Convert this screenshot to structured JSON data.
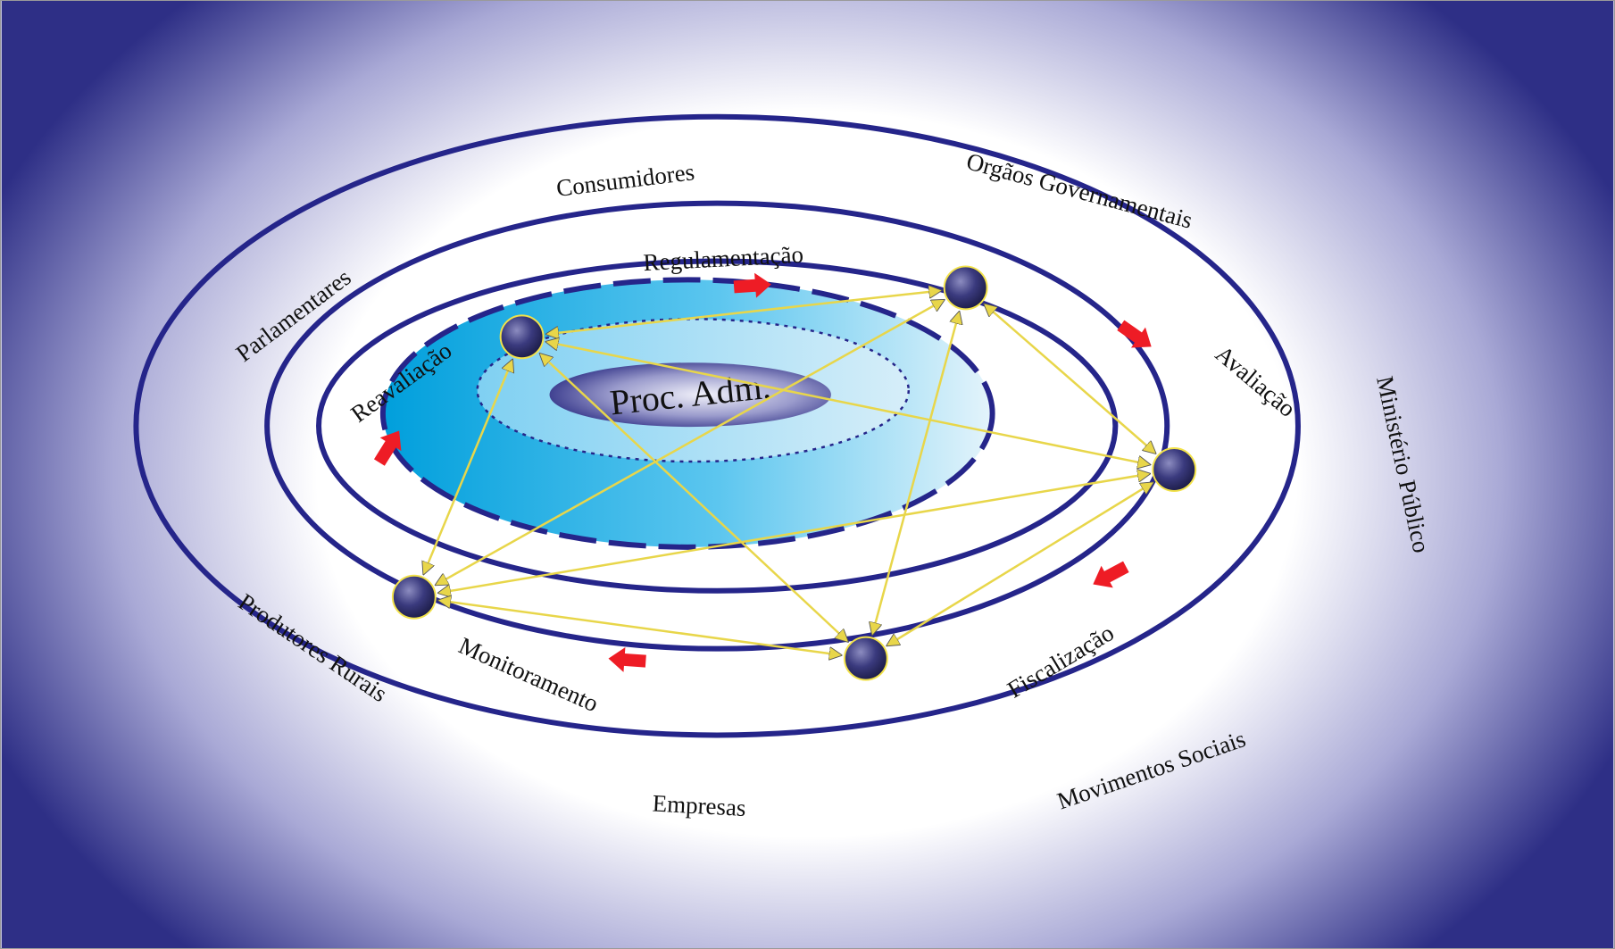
{
  "colors": {
    "background_edge": "#2e2f86",
    "ring": "#25258a",
    "inner_fill_dark": "#009fdc",
    "inner_fill_light": "#b8e4f7",
    "center_dark": "#2c2d84",
    "center_light": "#e8e8f4",
    "node": "#2a2a6e",
    "node_outline": "#f2e24a",
    "link": "#e8d64a",
    "flow_arrow": "#ee1c25"
  },
  "center_label": "Proc. Adm.",
  "outer_ring_labels": [
    "Consumidores",
    "Orgãos Governamentais",
    "Parlamentares",
    "Ministério Público",
    "Produtores Rurais",
    "Movimentos Sociais",
    "Empresas"
  ],
  "cycle_labels": [
    "Regulamentação",
    "Avaliação",
    "Reavaliação",
    "Fiscalização",
    "Monitoramento"
  ],
  "nodes": [
    "regulamentacao-node",
    "reavaliacao-node",
    "avaliacao-node",
    "monitoramento-node",
    "fiscalizacao-node"
  ]
}
